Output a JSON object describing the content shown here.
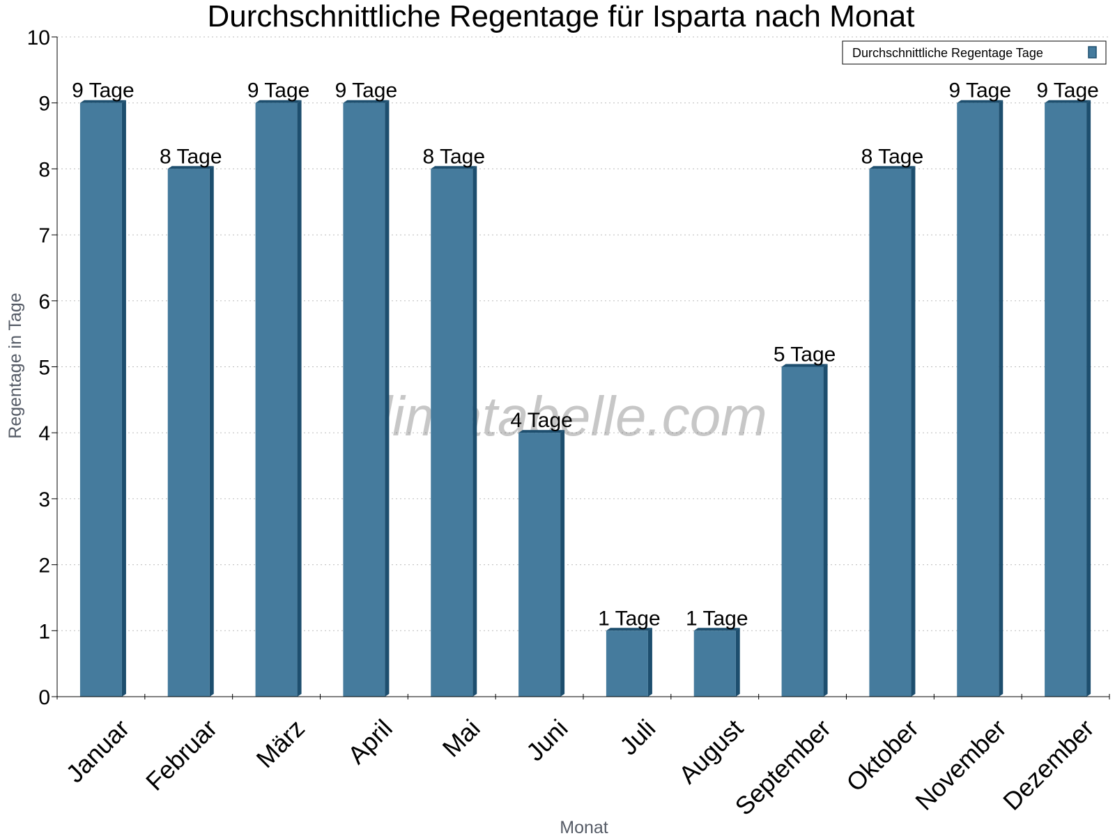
{
  "chart_data": {
    "type": "bar",
    "title": "Durchschnittliche Regentage für Isparta nach Monat",
    "xlabel": "Monat",
    "ylabel": "Regentage in Tage",
    "ylim": [
      0,
      10
    ],
    "yticks": [
      "0",
      "1",
      "2",
      "3",
      "4",
      "5",
      "6",
      "7",
      "8",
      "9",
      "10"
    ],
    "grid": true,
    "legend_position": "top-right",
    "categories": [
      "Januar",
      "Februar",
      "März",
      "April",
      "Mai",
      "Juni",
      "Juli",
      "August",
      "September",
      "Oktober",
      "November",
      "Dezember"
    ],
    "series": [
      {
        "name": "Durchschnittliche Regentage Tage",
        "values": [
          9,
          8,
          9,
          9,
          8,
          4,
          1,
          1,
          5,
          8,
          9,
          9
        ],
        "labels": [
          "9 Tage",
          "8 Tage",
          "9 Tage",
          "9 Tage",
          "8 Tage",
          "4 Tage",
          "1 Tage",
          "1 Tage",
          "5 Tage",
          "8 Tage",
          "9 Tage",
          "9 Tage"
        ],
        "color": "#457b9d",
        "side_color": "#1d4e6e"
      }
    ],
    "watermark": "klimatabelle.com"
  }
}
